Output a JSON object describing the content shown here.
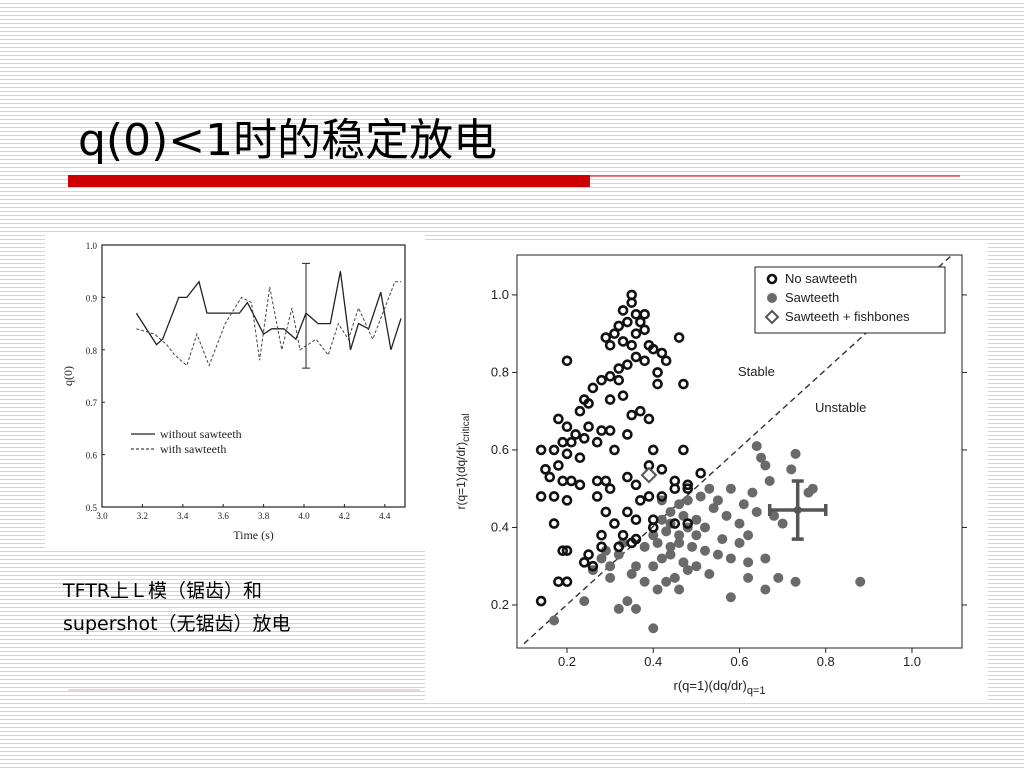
{
  "title": "q(0)<1时的稳定放电",
  "caption": [
    "TFTR上Ｌ模（锯齿）和",
    "supershot（无锯齿）放电"
  ],
  "chart_data": [
    {
      "type": "line",
      "x_label": "Time (s)",
      "y_label": "q(0)",
      "xlim": [
        3.0,
        4.5
      ],
      "ylim": [
        0.5,
        1.0
      ],
      "xticks": [
        {
          "value": 3.0,
          "label": "3.0"
        },
        3.2,
        3.4,
        3.6,
        3.8,
        {
          "value": 4.0,
          "label": "4.0"
        },
        4.2,
        4.4
      ],
      "yticks": [
        0.5,
        0.6,
        0.7,
        0.8,
        0.9,
        {
          "value": 1.0,
          "label": "1.0"
        }
      ],
      "series": [
        {
          "name": "without sawteeth",
          "color": "#222222",
          "line_style": "solid",
          "x": [
            3.17,
            3.27,
            3.3,
            3.38,
            3.42,
            3.48,
            3.52,
            3.68,
            3.72,
            3.8,
            3.84,
            3.9,
            3.96,
            4.01,
            4.07,
            4.13,
            4.18,
            4.23,
            4.27,
            4.32,
            4.38,
            4.43,
            4.48
          ],
          "values": [
            0.87,
            0.81,
            0.82,
            0.9,
            0.9,
            0.93,
            0.87,
            0.87,
            0.89,
            0.83,
            0.84,
            0.84,
            0.82,
            0.87,
            0.85,
            0.85,
            0.95,
            0.8,
            0.85,
            0.84,
            0.91,
            0.8,
            0.86
          ]
        },
        {
          "name": "with sawteeth",
          "color": "#444444",
          "line_style": "dashed",
          "x": [
            3.17,
            3.26,
            3.32,
            3.36,
            3.42,
            3.47,
            3.53,
            3.61,
            3.69,
            3.74,
            3.78,
            3.83,
            3.89,
            3.94,
            3.98,
            4.06,
            4.12,
            4.17,
            4.22,
            4.27,
            4.34,
            4.39,
            4.45,
            4.48
          ],
          "values": [
            0.84,
            0.83,
            0.81,
            0.79,
            0.77,
            0.83,
            0.77,
            0.85,
            0.9,
            0.89,
            0.78,
            0.92,
            0.8,
            0.88,
            0.8,
            0.82,
            0.79,
            0.85,
            0.82,
            0.88,
            0.82,
            0.87,
            0.93,
            0.93
          ]
        }
      ],
      "error_bars": [
        {
          "x": 4.01,
          "value": 0.865,
          "error": 0.1
        }
      ]
    },
    {
      "type": "scatter",
      "x_label": "r(q=1)(dq/dr)",
      "x_label_sub": "q=1",
      "y_label": "r(q=1)(dq/dr)",
      "y_label_sub": "critical",
      "xlim": [
        0.084,
        1.116
      ],
      "ylim": [
        0.089,
        1.103
      ],
      "xticks": [
        0.2,
        0.4,
        0.6,
        0.8,
        {
          "value": 1.0,
          "label": "1.0"
        }
      ],
      "yticks": [
        0.2,
        0.4,
        0.6,
        0.8,
        {
          "value": 1.0,
          "label": "1.0"
        }
      ],
      "annotations": [
        "Stable",
        "Unstable"
      ],
      "diagonal": {
        "x": [
          0.1,
          1.09
        ],
        "y": [
          0.1,
          1.1
        ]
      },
      "series": [
        {
          "name": "No sawteeth",
          "color": "#111111",
          "marker": "ring",
          "x": [
            0.35,
            0.35,
            0.33,
            0.36,
            0.38,
            0.34,
            0.37,
            0.32,
            0.29,
            0.31,
            0.36,
            0.38,
            0.33,
            0.35,
            0.39,
            0.46,
            0.3,
            0.4,
            0.42,
            0.36,
            0.34,
            0.32,
            0.38,
            0.43,
            0.2,
            0.3,
            0.28,
            0.32,
            0.41,
            0.41,
            0.47,
            0.26,
            0.24,
            0.25,
            0.3,
            0.33,
            0.37,
            0.23,
            0.35,
            0.39,
            0.18,
            0.2,
            0.25,
            0.28,
            0.3,
            0.22,
            0.24,
            0.34,
            0.19,
            0.21,
            0.27,
            0.31,
            0.4,
            0.14,
            0.17,
            0.2,
            0.23,
            0.15,
            0.18,
            0.16,
            0.19,
            0.21,
            0.23,
            0.27,
            0.29,
            0.34,
            0.36,
            0.47,
            0.39,
            0.42,
            0.45,
            0.48,
            0.51,
            0.14,
            0.17,
            0.2,
            0.27,
            0.3,
            0.37,
            0.39,
            0.42,
            0.45,
            0.48,
            0.29,
            0.34,
            0.36,
            0.17,
            0.31,
            0.4,
            0.45,
            0.48,
            0.28,
            0.33,
            0.36,
            0.4,
            0.19,
            0.2,
            0.25,
            0.28,
            0.32,
            0.35,
            0.24,
            0.26,
            0.18,
            0.2,
            0.14
          ],
          "y": [
            1.0,
            0.98,
            0.96,
            0.95,
            0.95,
            0.93,
            0.93,
            0.92,
            0.89,
            0.9,
            0.9,
            0.91,
            0.88,
            0.87,
            0.87,
            0.89,
            0.87,
            0.86,
            0.85,
            0.84,
            0.82,
            0.81,
            0.83,
            0.83,
            0.83,
            0.79,
            0.78,
            0.78,
            0.8,
            0.77,
            0.77,
            0.76,
            0.73,
            0.72,
            0.73,
            0.74,
            0.7,
            0.7,
            0.69,
            0.68,
            0.68,
            0.66,
            0.66,
            0.65,
            0.65,
            0.64,
            0.63,
            0.64,
            0.62,
            0.62,
            0.62,
            0.6,
            0.6,
            0.6,
            0.6,
            0.59,
            0.58,
            0.55,
            0.56,
            0.53,
            0.52,
            0.52,
            0.51,
            0.52,
            0.52,
            0.53,
            0.51,
            0.6,
            0.56,
            0.55,
            0.52,
            0.51,
            0.54,
            0.48,
            0.48,
            0.47,
            0.48,
            0.5,
            0.47,
            0.48,
            0.48,
            0.5,
            0.5,
            0.44,
            0.44,
            0.42,
            0.41,
            0.41,
            0.42,
            0.41,
            0.41,
            0.38,
            0.38,
            0.37,
            0.4,
            0.34,
            0.34,
            0.33,
            0.35,
            0.35,
            0.36,
            0.31,
            0.3,
            0.26,
            0.26,
            0.21
          ]
        },
        {
          "name": "Sawteeth",
          "color": "#6a6a6a",
          "marker": "dot",
          "x": [
            0.17,
            0.24,
            0.32,
            0.34,
            0.36,
            0.4,
            0.26,
            0.3,
            0.3,
            0.35,
            0.38,
            0.41,
            0.43,
            0.45,
            0.46,
            0.48,
            0.28,
            0.32,
            0.36,
            0.4,
            0.42,
            0.44,
            0.47,
            0.5,
            0.53,
            0.29,
            0.33,
            0.38,
            0.41,
            0.44,
            0.46,
            0.49,
            0.52,
            0.55,
            0.58,
            0.62,
            0.66,
            0.4,
            0.43,
            0.46,
            0.48,
            0.5,
            0.52,
            0.56,
            0.6,
            0.62,
            0.42,
            0.44,
            0.47,
            0.5,
            0.54,
            0.57,
            0.6,
            0.64,
            0.44,
            0.46,
            0.51,
            0.55,
            0.58,
            0.61,
            0.63,
            0.68,
            0.7,
            0.66,
            0.65,
            0.64,
            0.72,
            0.73,
            0.67,
            0.76,
            0.77,
            0.69,
            0.73,
            0.88,
            0.62,
            0.58,
            0.66,
            0.42,
            0.48,
            0.53
          ],
          "y": [
            0.16,
            0.21,
            0.19,
            0.21,
            0.19,
            0.14,
            0.29,
            0.27,
            0.3,
            0.28,
            0.26,
            0.24,
            0.26,
            0.27,
            0.24,
            0.29,
            0.32,
            0.33,
            0.3,
            0.3,
            0.32,
            0.33,
            0.31,
            0.3,
            0.28,
            0.34,
            0.36,
            0.35,
            0.36,
            0.35,
            0.36,
            0.35,
            0.34,
            0.33,
            0.32,
            0.31,
            0.32,
            0.38,
            0.39,
            0.38,
            0.4,
            0.38,
            0.4,
            0.37,
            0.36,
            0.38,
            0.42,
            0.41,
            0.43,
            0.42,
            0.45,
            0.43,
            0.41,
            0.44,
            0.44,
            0.46,
            0.48,
            0.47,
            0.5,
            0.46,
            0.49,
            0.43,
            0.41,
            0.56,
            0.58,
            0.61,
            0.55,
            0.59,
            0.52,
            0.49,
            0.5,
            0.27,
            0.26,
            0.26,
            0.27,
            0.22,
            0.24,
            0.47,
            0.47,
            0.5
          ]
        },
        {
          "name": "Sawteeth + fishbones",
          "color": "#555555",
          "marker": "diamond",
          "x": [
            0.39
          ],
          "y": [
            0.535
          ]
        }
      ],
      "error_bars": [
        {
          "x": 0.735,
          "y": 0.445,
          "x_error": 0.065,
          "y_error": 0.075
        }
      ]
    }
  ]
}
